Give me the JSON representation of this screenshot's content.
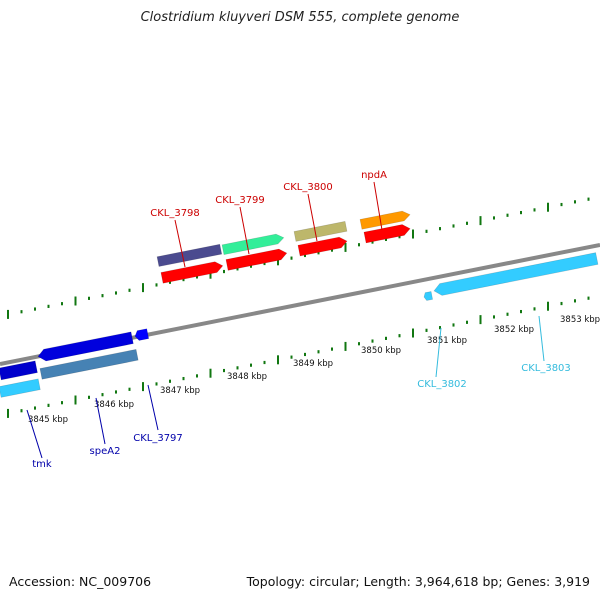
{
  "title": "Clostridium kluyveri DSM 555, complete genome",
  "footer": {
    "accession": "Accession: NC_009706",
    "summary": "Topology: circular; Length: 3,964,618 bp; Genes: 3,919"
  },
  "colors": {
    "backbone": "#888888",
    "ticks": "#117711",
    "cds": "#ff0000",
    "label_forward": "#cc0000",
    "label_reverse_blue": "#0000aa",
    "label_reverse_cyan": "#33bbdd"
  },
  "scale": {
    "unit": "kbp",
    "ticks": [
      "3845 kbp",
      "3846 kbp",
      "3847 kbp",
      "3848 kbp",
      "3849 kbp",
      "3850 kbp",
      "3851 kbp",
      "3852 kbp",
      "3853 kbp"
    ]
  },
  "features": [
    {
      "label": "tmk",
      "strand": "reverse",
      "color": "#0000cc"
    },
    {
      "label": "speA2",
      "strand": "reverse",
      "color": "#0000dd"
    },
    {
      "label": "CKL_3797",
      "strand": "reverse",
      "color": "#0000ff"
    },
    {
      "label": "CKL_3798",
      "strand": "forward",
      "color": "#4b4b8f"
    },
    {
      "label": "CKL_3799",
      "strand": "forward",
      "color": "#33ee99"
    },
    {
      "label": "CKL_3800",
      "strand": "forward",
      "color": "#bdb76b"
    },
    {
      "label": "npdA",
      "strand": "forward",
      "color": "#ff9900"
    },
    {
      "label": "CKL_3802",
      "strand": "reverse",
      "color": "#33ccff"
    },
    {
      "label": "CKL_3803",
      "strand": "reverse",
      "color": "#33ccff"
    }
  ]
}
